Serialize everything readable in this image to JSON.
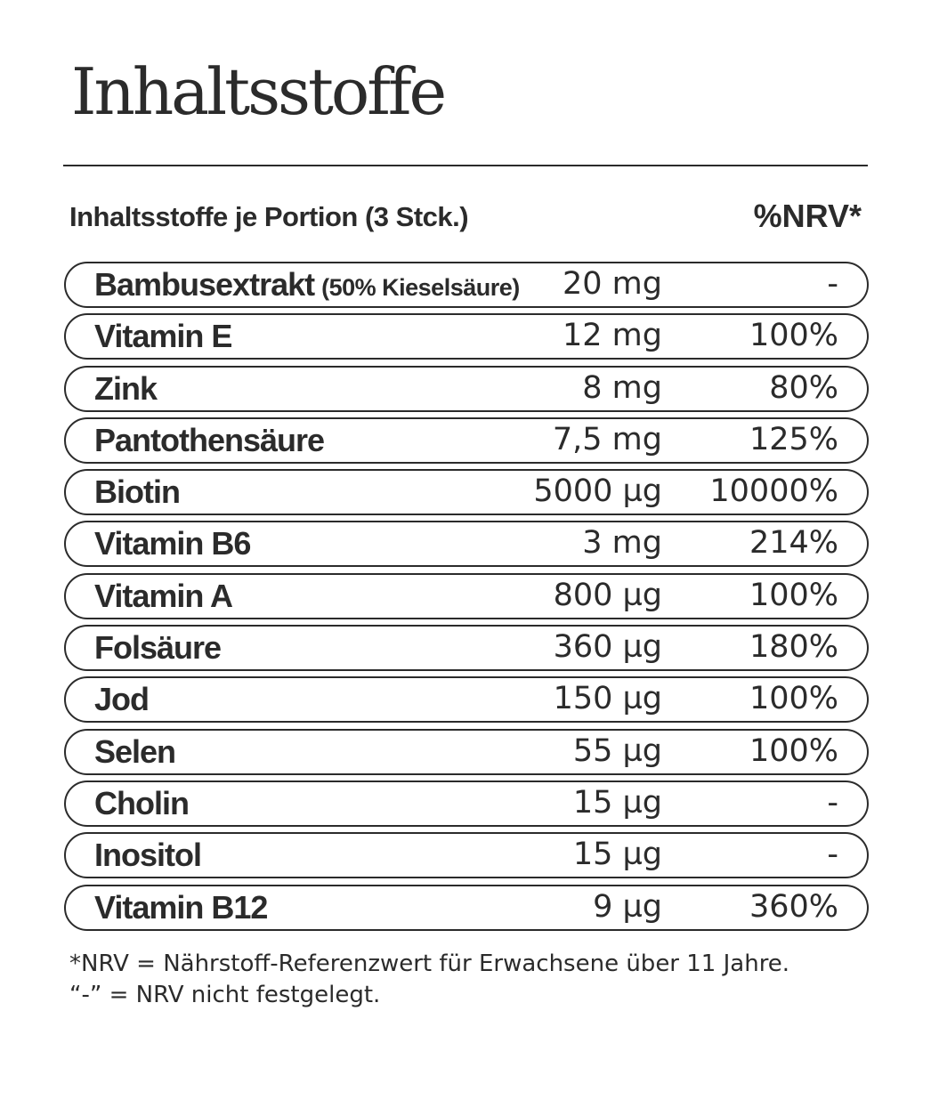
{
  "title": "Inhaltsstoffe",
  "table": {
    "header_left": "Inhaltsstoffe je Portion (3 Stck.)",
    "header_right": "%NRV*",
    "rows": [
      {
        "name": "Bambusextrakt",
        "note": "(50% Kieselsäure)",
        "amount": "20 mg",
        "nrv": "-"
      },
      {
        "name": "Vitamin E",
        "amount": "12 mg",
        "nrv": "100%"
      },
      {
        "name": "Zink",
        "amount": "8 mg",
        "nrv": "80%"
      },
      {
        "name": "Pantothensäure",
        "amount": "7,5 mg",
        "nrv": "125%"
      },
      {
        "name": "Biotin",
        "amount": "5000 µg",
        "nrv": "10000%"
      },
      {
        "name": "Vitamin B6",
        "amount": "3 mg",
        "nrv": "214%"
      },
      {
        "name": "Vitamin A",
        "amount": "800 µg",
        "nrv": "100%"
      },
      {
        "name": "Folsäure",
        "amount": "360 µg",
        "nrv": "180%"
      },
      {
        "name": "Jod",
        "amount": "150 µg",
        "nrv": "100%"
      },
      {
        "name": "Selen",
        "amount": "55 µg",
        "nrv": "100%"
      },
      {
        "name": "Cholin",
        "amount": "15 µg",
        "nrv": "-"
      },
      {
        "name": "Inositol",
        "amount": "15 µg",
        "nrv": "-"
      },
      {
        "name": "Vitamin B12",
        "amount": "9 µg",
        "nrv": "360%"
      }
    ]
  },
  "footnote": {
    "line1": "*NRV = Nährstoff-Referenzwert für Erwachsene über 11 Jahre.",
    "line2": "“-” = NRV nicht festgelegt."
  }
}
